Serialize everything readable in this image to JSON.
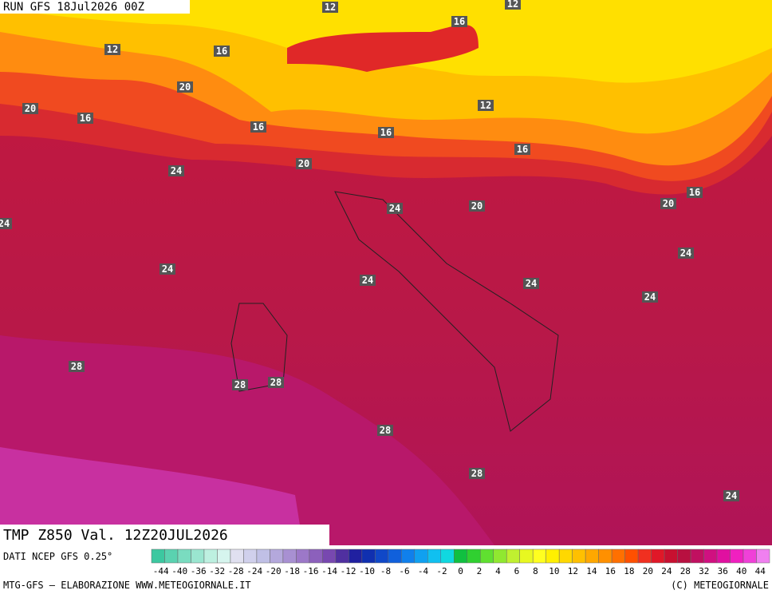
{
  "header": {
    "run": "RUN GFS 18Jul2026 00Z",
    "title": "TMP Z850 Val. 12Z20JUL2026"
  },
  "contour_labels": [
    "12",
    "12",
    "12",
    "16",
    "16",
    "20",
    "20",
    "16",
    "12",
    "16",
    "16",
    "16",
    "20",
    "24",
    "16",
    "20",
    "20",
    "24",
    "24",
    "24",
    "24",
    "24",
    "24",
    "24",
    "28",
    "28",
    "28",
    "28",
    "28",
    "24"
  ],
  "colorbar": {
    "colors": [
      "#3cc8a0",
      "#5ad2b0",
      "#7adcc0",
      "#9ae6d0",
      "#bdf0e0",
      "#d6f5ee",
      "#e0e0f0",
      "#d0d0ec",
      "#c0c0e6",
      "#b4a8dc",
      "#a890d2",
      "#9c78c8",
      "#8c60bc",
      "#7848b0",
      "#5030a0",
      "#2020a0",
      "#1030b0",
      "#1048c8",
      "#1060dc",
      "#1080ec",
      "#10a0f0",
      "#10c0f0",
      "#10d8e0",
      "#10c040",
      "#30d030",
      "#60e030",
      "#90e830",
      "#c0f030",
      "#e8f820",
      "#ffff20",
      "#fff000",
      "#ffd800",
      "#ffc000",
      "#ffa800",
      "#ff9000",
      "#ff7000",
      "#ff5000",
      "#f03020",
      "#e01828",
      "#c81030",
      "#b81040",
      "#c01060",
      "#d01080",
      "#e010a0",
      "#f020c0",
      "#f040d8",
      "#f080f0"
    ],
    "labels": [
      "-44",
      "-40",
      "-36",
      "-32",
      "-28",
      "-24",
      "-20",
      "-18",
      "-16",
      "-14",
      "-12",
      "-10",
      "-8",
      "-6",
      "-4",
      "-2",
      "0",
      "2",
      "4",
      "6",
      "8",
      "10",
      "12",
      "14",
      "16",
      "18",
      "20",
      "24",
      "28",
      "32",
      "36",
      "40",
      "44"
    ]
  },
  "footer": {
    "source": "DATI NCEP GFS 0.25°",
    "credit": "MTG-GFS — ELABORAZIONE WWW.METEOGIORNALE.IT",
    "copyright": "(C) METEOGIORNALE"
  }
}
